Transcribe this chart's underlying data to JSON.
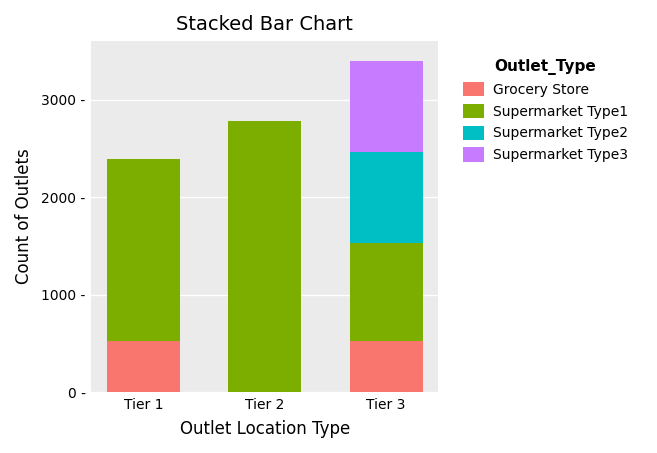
{
  "title": "Stacked Bar Chart",
  "xlabel": "Outlet Location Type",
  "ylabel": "Count of Outlets",
  "categories": [
    "Tier 1",
    "Tier 2",
    "Tier 3"
  ],
  "legend_title": "Outlet_Type",
  "series": [
    {
      "label": "Grocery Store",
      "color": "#F8766D",
      "values": [
        528,
        0,
        528
      ]
    },
    {
      "label": "Supermarket Type1",
      "color": "#7CAE00",
      "values": [
        1859,
        2785,
        1000
      ]
    },
    {
      "label": "Supermarket Type2",
      "color": "#00BFC4",
      "values": [
        0,
        0,
        932
      ]
    },
    {
      "label": "Supermarket Type3",
      "color": "#C77CFF",
      "values": [
        0,
        0,
        935
      ]
    }
  ],
  "ylim": [
    0,
    3600
  ],
  "yticks": [
    0,
    1000,
    2000,
    3000
  ],
  "ytick_labels": [
    "0 -",
    "1000 -",
    "2000 -",
    "3000 -"
  ],
  "panel_background": "#EBEBEB",
  "fig_background": "#FFFFFF",
  "grid_color": "#FFFFFF",
  "title_fontsize": 14,
  "axis_label_fontsize": 12,
  "tick_fontsize": 10,
  "legend_fontsize": 10,
  "legend_title_fontsize": 11,
  "bar_width": 0.6
}
